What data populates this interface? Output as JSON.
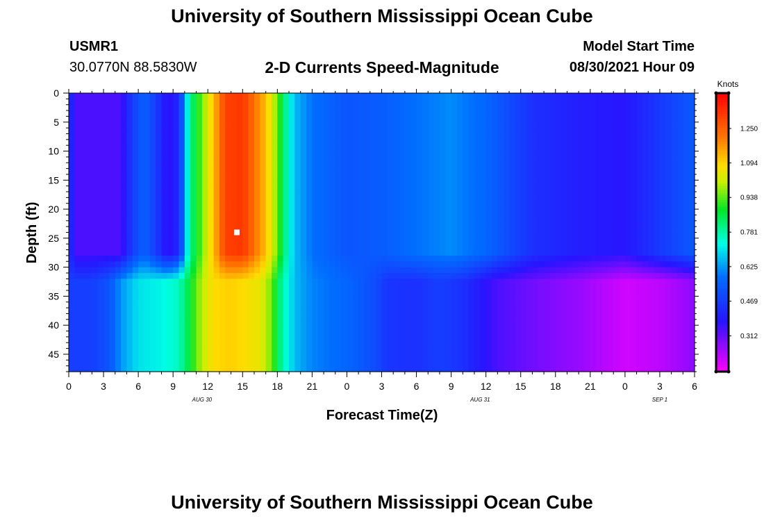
{
  "header": {
    "title": "University of Southern Mississippi Ocean Cube",
    "station": "USMR1",
    "coordinates": "30.0770N  88.5830W",
    "subtitle": "2-D Currents Speed-Magnitude",
    "model_start_label": "Model Start Time",
    "model_start_value": "08/30/2021 Hour 09"
  },
  "footer": {
    "title": "University of Southern Mississippi Ocean Cube"
  },
  "chart_data": {
    "type": "heatmap",
    "xlabel": "Forecast Time(Z)",
    "ylabel": "Depth (ft)",
    "x_ticks": [
      "0",
      "3",
      "6",
      "9",
      "12",
      "15",
      "18",
      "21",
      "0",
      "3",
      "6",
      "9",
      "12",
      "15",
      "18",
      "21",
      "0",
      "3",
      "6"
    ],
    "x_range_hours": [
      0,
      54
    ],
    "date_labels": [
      {
        "label": "AUG 30",
        "at_hour": 11.5
      },
      {
        "label": "AUG 31",
        "at_hour": 35.5
      },
      {
        "label": "SEP 1",
        "at_hour": 51
      }
    ],
    "y_ticks": [
      "0",
      "5",
      "10",
      "15",
      "20",
      "25",
      "30",
      "35",
      "40",
      "45"
    ],
    "ylim": [
      0,
      48
    ],
    "y_inverted": true,
    "colorbar": {
      "unit": "Knots",
      "ticks": [
        "1.250",
        "1.094",
        "0.938",
        "0.781",
        "0.625",
        "0.469",
        "0.312"
      ],
      "tick_values": [
        1.25,
        1.094,
        0.938,
        0.781,
        0.625,
        0.469,
        0.312
      ],
      "range": [
        0.15,
        1.41
      ]
    },
    "marker": {
      "hour": 14.5,
      "depth": 24,
      "color": "#ffffff"
    },
    "upper_layer_depth_ft": 30,
    "speed_profile_upper": [
      {
        "hour": 0,
        "value": 0.47
      },
      {
        "hour": 0.5,
        "value": 0.34
      },
      {
        "hour": 4.5,
        "value": 0.34
      },
      {
        "hour": 5.5,
        "value": 0.47
      },
      {
        "hour": 6.5,
        "value": 0.55
      },
      {
        "hour": 7.5,
        "value": 0.47
      },
      {
        "hour": 8.5,
        "value": 0.36
      },
      {
        "hour": 9.5,
        "value": 0.42
      },
      {
        "hour": 10.0,
        "value": 0.62
      },
      {
        "hour": 10.5,
        "value": 0.8
      },
      {
        "hour": 11.5,
        "value": 0.95
      },
      {
        "hour": 12.5,
        "value": 1.12
      },
      {
        "hour": 13.5,
        "value": 1.3
      },
      {
        "hour": 15.0,
        "value": 1.32
      },
      {
        "hour": 17.0,
        "value": 1.12
      },
      {
        "hour": 18.0,
        "value": 0.95
      },
      {
        "hour": 18.7,
        "value": 0.8
      },
      {
        "hour": 19.5,
        "value": 0.66
      },
      {
        "hour": 21.0,
        "value": 0.58
      },
      {
        "hour": 24.0,
        "value": 0.52
      },
      {
        "hour": 27.0,
        "value": 0.54
      },
      {
        "hour": 30.0,
        "value": 0.58
      },
      {
        "hour": 33.0,
        "value": 0.61
      },
      {
        "hour": 36.0,
        "value": 0.56
      },
      {
        "hour": 40.0,
        "value": 0.44
      },
      {
        "hour": 44.0,
        "value": 0.4
      },
      {
        "hour": 48.0,
        "value": 0.38
      },
      {
        "hour": 51.0,
        "value": 0.46
      },
      {
        "hour": 54.0,
        "value": 0.53
      }
    ],
    "speed_profile_lower": [
      {
        "hour": 0,
        "value": 0.47
      },
      {
        "hour": 2.0,
        "value": 0.47
      },
      {
        "hour": 3.5,
        "value": 0.52
      },
      {
        "hour": 4.5,
        "value": 0.62
      },
      {
        "hour": 6.0,
        "value": 0.7
      },
      {
        "hour": 8.0,
        "value": 0.72
      },
      {
        "hour": 9.5,
        "value": 0.76
      },
      {
        "hour": 10.5,
        "value": 0.88
      },
      {
        "hour": 11.5,
        "value": 1.0
      },
      {
        "hour": 12.5,
        "value": 1.08
      },
      {
        "hour": 14.0,
        "value": 1.1
      },
      {
        "hour": 16.5,
        "value": 1.05
      },
      {
        "hour": 17.5,
        "value": 0.95
      },
      {
        "hour": 18.3,
        "value": 0.8
      },
      {
        "hour": 19.5,
        "value": 0.66
      },
      {
        "hour": 21.0,
        "value": 0.6
      },
      {
        "hour": 24.0,
        "value": 0.56
      },
      {
        "hour": 26.5,
        "value": 0.5
      },
      {
        "hour": 27.5,
        "value": 0.45
      },
      {
        "hour": 30.0,
        "value": 0.44
      },
      {
        "hour": 32.0,
        "value": 0.47
      },
      {
        "hour": 34.0,
        "value": 0.44
      },
      {
        "hour": 37.0,
        "value": 0.34
      },
      {
        "hour": 40.0,
        "value": 0.3
      },
      {
        "hour": 44.0,
        "value": 0.26
      },
      {
        "hour": 48.0,
        "value": 0.2
      },
      {
        "hour": 51.0,
        "value": 0.22
      },
      {
        "hour": 54.0,
        "value": 0.27
      }
    ]
  }
}
